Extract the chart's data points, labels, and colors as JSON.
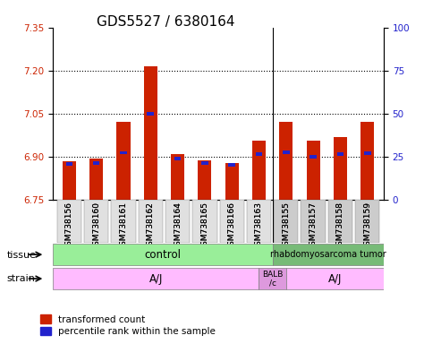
{
  "title": "GDS5527 / 6380164",
  "samples": [
    "GSM738156",
    "GSM738160",
    "GSM738161",
    "GSM738162",
    "GSM738164",
    "GSM738165",
    "GSM738166",
    "GSM738163",
    "GSM738155",
    "GSM738157",
    "GSM738158",
    "GSM738159"
  ],
  "red_values": [
    6.885,
    6.893,
    7.02,
    7.215,
    6.908,
    6.888,
    6.878,
    6.955,
    7.022,
    6.955,
    6.968,
    7.022
  ],
  "blue_values": [
    6.875,
    6.877,
    6.913,
    7.048,
    6.892,
    6.876,
    6.872,
    6.908,
    6.915,
    6.898,
    6.908,
    6.912
  ],
  "ylim_left": [
    6.75,
    7.35
  ],
  "ylim_right": [
    0,
    100
  ],
  "yticks_left": [
    6.75,
    6.9,
    7.05,
    7.2,
    7.35
  ],
  "yticks_right": [
    0,
    25,
    50,
    75,
    100
  ],
  "bar_bottom": 6.75,
  "bar_color_red": "#cc2200",
  "bar_color_blue": "#2222cc",
  "tissue_labels": [
    {
      "label": "control",
      "start": 0,
      "end": 7,
      "color": "#aaffaa"
    },
    {
      "label": "rhabdomyosarcoma tumor",
      "start": 8,
      "end": 11,
      "color": "#88cc88"
    }
  ],
  "strain_labels": [
    {
      "label": "A/J",
      "start": 0,
      "end": 6,
      "color": "#ffaaff"
    },
    {
      "label": "BALB\n/c",
      "start": 7,
      "end": 7,
      "color": "#ee88ee"
    },
    {
      "label": "A/J",
      "start": 8,
      "end": 11,
      "color": "#ffaaff"
    }
  ],
  "legend_red": "transformed count",
  "legend_blue": "percentile rank within the sample",
  "title_fontsize": 11,
  "tick_fontsize": 7.5,
  "label_fontsize": 8,
  "background_color": "#ffffff",
  "grid_color": "#000000",
  "axis_label_color_left": "#cc2200",
  "axis_label_color_right": "#2222cc"
}
